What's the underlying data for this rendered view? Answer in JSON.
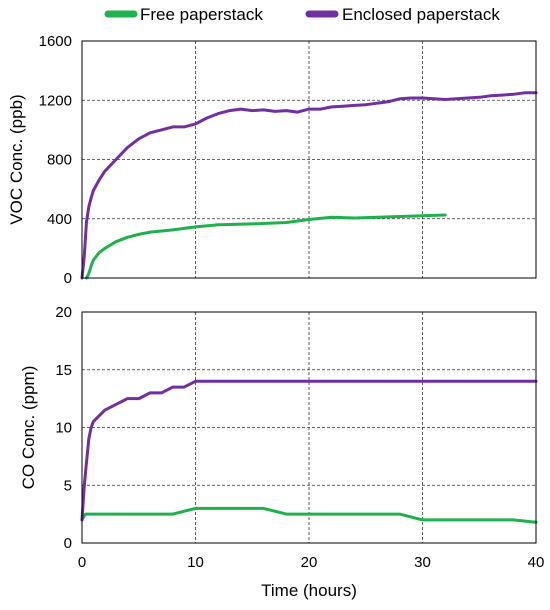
{
  "figure": {
    "legend": [
      {
        "name": "Free paperstack",
        "color": "#1fb14d"
      },
      {
        "name": "Enclosed paperstack",
        "color": "#7030a0"
      }
    ],
    "xlabel": "Time (hours)"
  },
  "chart_data": [
    {
      "type": "line",
      "title": "",
      "xlabel": "",
      "ylabel": "VOC Conc. (ppb)",
      "xlim": [
        0,
        40
      ],
      "ylim": [
        0,
        1600
      ],
      "xticks": [
        0,
        10,
        20,
        30,
        40
      ],
      "yticks": [
        0,
        400,
        800,
        1200,
        1600
      ],
      "grid": "dashed",
      "legend_position": "top",
      "series": [
        {
          "name": "Free paperstack",
          "color": "#1fb14d",
          "x": [
            0.4,
            0.6,
            0.8,
            1,
            1.5,
            2,
            3,
            4,
            5,
            6,
            8,
            10,
            12,
            15,
            18,
            20,
            22,
            24,
            26,
            28,
            30,
            32
          ],
          "y": [
            0,
            30,
            80,
            120,
            170,
            200,
            245,
            275,
            295,
            310,
            325,
            345,
            360,
            365,
            375,
            395,
            410,
            405,
            410,
            415,
            420,
            425
          ]
        },
        {
          "name": "Enclosed paperstack",
          "color": "#7030a0",
          "x": [
            0,
            0.2,
            0.4,
            0.6,
            0.8,
            1,
            1.5,
            2,
            3,
            4,
            5,
            6,
            7,
            8,
            9,
            10,
            11,
            12,
            13,
            14,
            15,
            16,
            17,
            18,
            19,
            20,
            21,
            22,
            23,
            24,
            25,
            26,
            27,
            28,
            29,
            30,
            31,
            32,
            33,
            34,
            35,
            36,
            37,
            38,
            39,
            40
          ],
          "y": [
            0,
            150,
            380,
            480,
            540,
            590,
            660,
            720,
            800,
            880,
            940,
            980,
            1000,
            1020,
            1020,
            1040,
            1080,
            1110,
            1130,
            1140,
            1130,
            1135,
            1125,
            1130,
            1120,
            1140,
            1140,
            1155,
            1160,
            1165,
            1170,
            1180,
            1190,
            1210,
            1215,
            1215,
            1210,
            1205,
            1210,
            1215,
            1220,
            1230,
            1235,
            1240,
            1250,
            1250
          ]
        }
      ]
    },
    {
      "type": "line",
      "title": "",
      "xlabel": "Time (hours)",
      "ylabel": "CO Conc. (ppm)",
      "xlim": [
        0,
        40
      ],
      "ylim": [
        0,
        20
      ],
      "xticks": [
        0,
        10,
        20,
        30,
        40
      ],
      "yticks": [
        0,
        5,
        10,
        15,
        20
      ],
      "grid": "dashed",
      "series": [
        {
          "name": "Free paperstack",
          "color": "#1fb14d",
          "x": [
            0,
            0.3,
            0.6,
            1,
            2,
            4,
            6,
            8,
            10,
            12,
            14,
            16,
            18,
            20,
            22,
            24,
            26,
            28,
            30,
            32,
            34,
            36,
            38,
            40
          ],
          "y": [
            2,
            2.5,
            2.5,
            2.5,
            2.5,
            2.5,
            2.5,
            2.5,
            3,
            3,
            3,
            3,
            2.5,
            2.5,
            2.5,
            2.5,
            2.5,
            2.5,
            2,
            2,
            2,
            2,
            2,
            1.8
          ]
        },
        {
          "name": "Enclosed paperstack",
          "color": "#7030a0",
          "x": [
            0,
            0.2,
            0.4,
            0.6,
            0.8,
            1,
            1.5,
            2,
            3,
            4,
            5,
            6,
            7,
            8,
            9,
            10,
            11,
            12,
            14,
            16,
            18,
            20,
            22,
            24,
            26,
            28,
            30,
            32,
            34,
            36,
            38,
            40
          ],
          "y": [
            2,
            5,
            7,
            9,
            10,
            10.5,
            11,
            11.5,
            12,
            12.5,
            12.5,
            13,
            13,
            13.5,
            13.5,
            14,
            14,
            14,
            14,
            14,
            14,
            14,
            14,
            14,
            14,
            14,
            14,
            14,
            14,
            14,
            14,
            14
          ]
        }
      ]
    }
  ]
}
